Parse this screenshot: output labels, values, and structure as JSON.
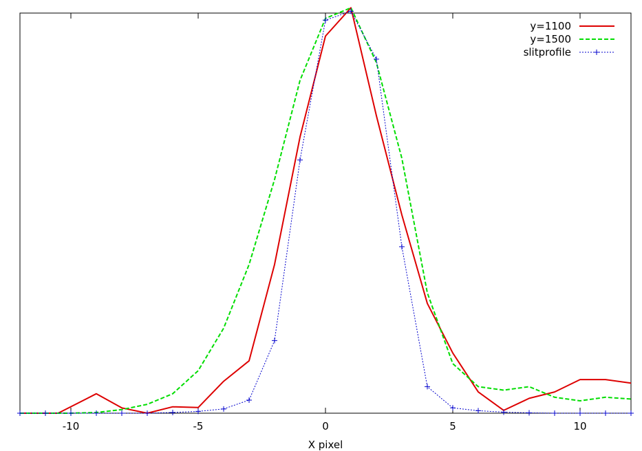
{
  "chart_data": {
    "type": "line",
    "title": "",
    "xlabel": "X pixel",
    "ylabel": "",
    "xlim": [
      -12,
      12
    ],
    "ylim": [
      0,
      1.13
    ],
    "xticks": [
      -10,
      -5,
      0,
      5,
      10
    ],
    "xtick_labels": [
      "-10",
      "-5",
      "0",
      "5",
      "10"
    ],
    "legend_position": "top-right",
    "grid": false,
    "series": [
      {
        "name": "y=1100",
        "style": "solid",
        "color": "#dd0000",
        "marker": "none",
        "x": [
          -12,
          -11,
          -10.5,
          -9,
          -8,
          -7,
          -6,
          -5,
          -4,
          -3,
          -2,
          -1,
          0,
          1,
          2,
          3,
          4,
          5,
          6,
          7,
          8,
          9,
          10,
          11,
          12
        ],
        "y": [
          0.0,
          0.0,
          0.0,
          0.055,
          0.015,
          0.0,
          0.018,
          0.016,
          0.09,
          0.148,
          0.42,
          0.78,
          1.065,
          1.145,
          0.84,
          0.56,
          0.31,
          0.17,
          0.06,
          0.008,
          0.042,
          0.06,
          0.095,
          0.095,
          0.085
        ]
      },
      {
        "name": "y=1500",
        "style": "dashed",
        "color": "#00dd00",
        "marker": "none",
        "x": [
          -12,
          -11,
          -10,
          -9,
          -8,
          -7,
          -6,
          -5,
          -4,
          -3,
          -2,
          -1,
          0,
          1,
          2,
          3,
          4,
          5,
          6,
          7,
          8,
          9,
          10,
          11,
          12
        ],
        "y": [
          0.0,
          0.0,
          0.0,
          0.002,
          0.01,
          0.025,
          0.055,
          0.12,
          0.24,
          0.42,
          0.66,
          0.94,
          1.115,
          1.145,
          0.99,
          0.72,
          0.34,
          0.14,
          0.075,
          0.065,
          0.075,
          0.045,
          0.035,
          0.045,
          0.04
        ]
      },
      {
        "name": "slitprofile",
        "style": "dotted",
        "color": "#0000cc",
        "marker": "+",
        "x": [
          -12,
          -11,
          -10,
          -9,
          -8,
          -7,
          -6,
          -5,
          -4,
          -3,
          -2,
          -1,
          0,
          1,
          2,
          3,
          4,
          5,
          6,
          7,
          8,
          9,
          10,
          11,
          12
        ],
        "y": [
          0.0,
          0.0,
          0.0,
          0.0,
          0.0,
          0.0,
          0.002,
          0.005,
          0.012,
          0.037,
          0.205,
          0.715,
          1.11,
          1.135,
          1.0,
          0.47,
          0.075,
          0.015,
          0.007,
          0.003,
          0.001,
          0.0,
          0.0,
          0.0,
          0.0
        ]
      }
    ]
  }
}
